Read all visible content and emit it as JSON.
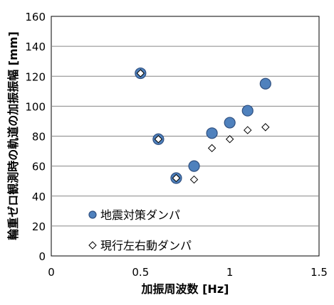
{
  "chart_data": {
    "type": "scatter",
    "xlabel": "加振周波数 [Hz]",
    "ylabel": "輪重ゼロ観測時の軌道の加振振幅 [mm]",
    "xlim": [
      0,
      1.5
    ],
    "ylim": [
      0,
      160
    ],
    "x_ticks": [
      "0",
      "0.5",
      "1",
      "1.5"
    ],
    "y_ticks": [
      "0",
      "20",
      "40",
      "60",
      "80",
      "100",
      "120",
      "140",
      "160"
    ],
    "x_tick_values": [
      0,
      0.5,
      1,
      1.5
    ],
    "y_tick_values": [
      0,
      20,
      40,
      60,
      80,
      100,
      120,
      140,
      160
    ],
    "grid": "horizontal",
    "legend_position": "bottom-left",
    "series": [
      {
        "name": "地震対策ダンパ",
        "marker": "circle",
        "color": "#4f81bd",
        "edge_color": "#2f4f7f",
        "points": [
          {
            "x": 0.5,
            "y": 122
          },
          {
            "x": 0.6,
            "y": 78
          },
          {
            "x": 0.7,
            "y": 52
          },
          {
            "x": 0.8,
            "y": 60
          },
          {
            "x": 0.9,
            "y": 82
          },
          {
            "x": 1.0,
            "y": 89
          },
          {
            "x": 1.1,
            "y": 97
          },
          {
            "x": 1.2,
            "y": 115
          }
        ]
      },
      {
        "name": "現行左右動ダンパ",
        "marker": "diamond",
        "color": "#ffffff",
        "edge_color": "#000000",
        "points": [
          {
            "x": 0.5,
            "y": 122
          },
          {
            "x": 0.6,
            "y": 78
          },
          {
            "x": 0.7,
            "y": 52
          },
          {
            "x": 0.8,
            "y": 51
          },
          {
            "x": 0.9,
            "y": 72
          },
          {
            "x": 1.0,
            "y": 78
          },
          {
            "x": 1.1,
            "y": 84
          },
          {
            "x": 1.2,
            "y": 86
          }
        ]
      }
    ]
  }
}
